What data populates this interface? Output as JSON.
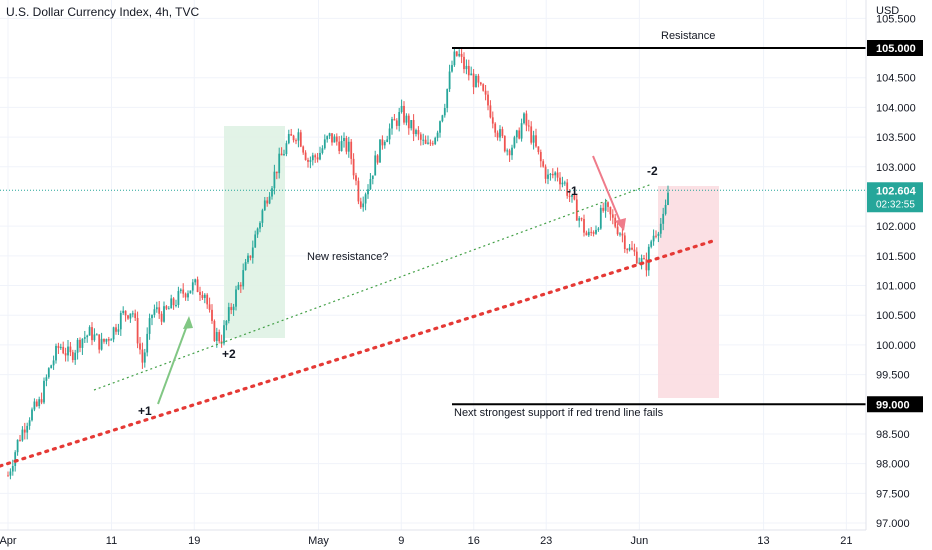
{
  "chart_data": {
    "type": "candlestick",
    "title": "U.S. Dollar Currency Index, 4h, TVC",
    "currency": "USD",
    "ylim": [
      96.9,
      105.6
    ],
    "y_ticks": [
      "105.500",
      "104.500",
      "104.000",
      "103.500",
      "103.000",
      "102.000",
      "101.500",
      "101.000",
      "100.500",
      "100.000",
      "99.500",
      "98.500",
      "98.000",
      "97.500",
      "97.000"
    ],
    "x_ticks": [
      {
        "label": "Apr",
        "day": 0
      },
      {
        "label": "11",
        "day": 10
      },
      {
        "label": "19",
        "day": 18
      },
      {
        "label": "May",
        "day": 30
      },
      {
        "label": "9",
        "day": 38
      },
      {
        "label": "16",
        "day": 45
      },
      {
        "label": "23",
        "day": 52
      },
      {
        "label": "Jun",
        "day": 61
      },
      {
        "label": "13",
        "day": 73
      },
      {
        "label": "21",
        "day": 81
      }
    ],
    "xlim": [
      0,
      84
    ],
    "last_price": "102.604",
    "countdown": "02:32:55",
    "level_labels": [
      {
        "label": "105.000",
        "value": 105.0
      },
      {
        "label": "99.000",
        "value": 99.0
      }
    ],
    "price_path": [
      [
        0,
        97.8
      ],
      [
        1,
        98.4
      ],
      [
        2,
        98.8
      ],
      [
        3,
        99.0
      ],
      [
        4,
        99.6
      ],
      [
        5,
        100.0
      ],
      [
        6,
        99.8
      ],
      [
        7,
        100.1
      ],
      [
        8,
        100.2
      ],
      [
        9,
        100.0
      ],
      [
        10,
        100.2
      ],
      [
        11,
        100.5
      ],
      [
        12,
        100.6
      ],
      [
        13,
        99.7
      ],
      [
        14,
        100.6
      ],
      [
        15,
        100.5
      ],
      [
        16,
        100.7
      ],
      [
        17,
        100.9
      ],
      [
        18,
        101.0
      ],
      [
        19,
        100.9
      ],
      [
        19.8,
        100.2
      ],
      [
        20.6,
        100.1
      ],
      [
        21.5,
        100.6
      ],
      [
        22.3,
        101.0
      ],
      [
        23.2,
        101.4
      ],
      [
        24,
        101.9
      ],
      [
        25,
        102.5
      ],
      [
        26,
        103.0
      ],
      [
        27,
        103.4
      ],
      [
        28,
        103.6
      ],
      [
        29,
        103.1
      ],
      [
        30,
        103.2
      ],
      [
        31,
        103.5
      ],
      [
        32,
        103.4
      ],
      [
        33,
        103.3
      ],
      [
        34,
        102.4
      ],
      [
        34.8,
        102.7
      ],
      [
        35.5,
        103.1
      ],
      [
        36.3,
        103.5
      ],
      [
        37.2,
        103.7
      ],
      [
        38,
        103.9
      ],
      [
        38.8,
        103.7
      ],
      [
        39.6,
        103.5
      ],
      [
        40.5,
        103.3
      ],
      [
        41.4,
        103.6
      ],
      [
        42.2,
        104.1
      ],
      [
        43,
        104.8
      ],
      [
        43.5,
        104.9
      ],
      [
        44,
        104.7
      ],
      [
        44.8,
        104.5
      ],
      [
        45.6,
        104.3
      ],
      [
        46.5,
        104.0
      ],
      [
        47.3,
        103.6
      ],
      [
        48.2,
        103.3
      ],
      [
        49,
        103.4
      ],
      [
        49.8,
        103.8
      ],
      [
        50.6,
        103.5
      ],
      [
        51.4,
        103.1
      ],
      [
        52.2,
        102.8
      ],
      [
        53,
        102.9
      ],
      [
        53.8,
        102.7
      ],
      [
        54.5,
        102.4
      ],
      [
        55.3,
        102.1
      ],
      [
        56,
        101.8
      ],
      [
        56.8,
        102.0
      ],
      [
        57.6,
        102.3
      ],
      [
        58.4,
        102.1
      ],
      [
        59.2,
        101.9
      ],
      [
        60,
        101.6
      ],
      [
        60.8,
        101.5
      ],
      [
        61.6,
        101.3
      ],
      [
        62.2,
        101.8
      ],
      [
        62.8,
        102.0
      ],
      [
        63.4,
        102.1
      ],
      [
        63.8,
        102.6
      ]
    ],
    "annotations": {
      "resistance": "Resistance",
      "new_resistance": "New resistance?",
      "support_note": "Next strongest support if red trend line fails",
      "plus1": "+1",
      "plus2": "+2",
      "minus1": "-1",
      "minus2": "-2"
    },
    "colors": {
      "up": "#26a69a",
      "down": "#ef5350",
      "green_zone": "#dff2e4",
      "red_zone": "#fbdde1",
      "trend_red": "#e53935",
      "trend_green": "#43a047",
      "last_price_tag": "#26a69a"
    }
  }
}
